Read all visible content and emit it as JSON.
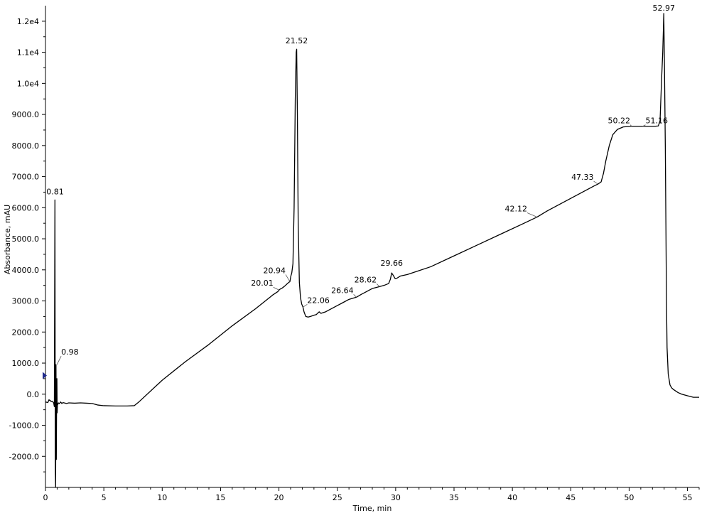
{
  "chart_data": {
    "type": "line",
    "title": "",
    "xlabel": "Time, min",
    "ylabel": "Absorbance, mAU",
    "xlim": [
      0,
      56
    ],
    "ylim": [
      -3000,
      12500
    ],
    "grid": false,
    "legend": "none",
    "line_color": "#000000",
    "marker_color": "#1f2a8c",
    "x_ticks": [
      {
        "value": 0,
        "label": "0"
      },
      {
        "value": 5,
        "label": "5"
      },
      {
        "value": 10,
        "label": "10"
      },
      {
        "value": 15,
        "label": "15"
      },
      {
        "value": 20,
        "label": "20"
      },
      {
        "value": 25,
        "label": "25"
      },
      {
        "value": 30,
        "label": "30"
      },
      {
        "value": 35,
        "label": "35"
      },
      {
        "value": 40,
        "label": "40"
      },
      {
        "value": 45,
        "label": "45"
      },
      {
        "value": 50,
        "label": "50"
      },
      {
        "value": 55,
        "label": "55"
      }
    ],
    "y_ticks": [
      {
        "value": -2000,
        "label": "-2000.0"
      },
      {
        "value": -1000,
        "label": "-1000.0"
      },
      {
        "value": 0,
        "label": "0.0"
      },
      {
        "value": 1000,
        "label": "1000.0"
      },
      {
        "value": 2000,
        "label": "2000.0"
      },
      {
        "value": 3000,
        "label": "3000.0"
      },
      {
        "value": 4000,
        "label": "4000.0"
      },
      {
        "value": 5000,
        "label": "5000.0"
      },
      {
        "value": 6000,
        "label": "6000.0"
      },
      {
        "value": 7000,
        "label": "7000.0"
      },
      {
        "value": 8000,
        "label": "8000.0"
      },
      {
        "value": 9000,
        "label": "9000.0"
      },
      {
        "value": 10000,
        "label": "1.0e4"
      },
      {
        "value": 11000,
        "label": "1.1e4"
      },
      {
        "value": 12000,
        "label": "1.2e4"
      }
    ],
    "series": [
      {
        "x": [
          0.0,
          0.1,
          0.2,
          0.3,
          0.4,
          0.5,
          0.6,
          0.7,
          0.76,
          0.81,
          0.84,
          0.87,
          0.9,
          0.93,
          0.96,
          0.98,
          1.0,
          1.03,
          1.06,
          1.1,
          1.2,
          1.3,
          1.4,
          1.5,
          1.6,
          1.8,
          2.0,
          2.5,
          3.0,
          3.5,
          4.0,
          4.5,
          5.0,
          6.0,
          7.0,
          7.6,
          8.0,
          10.0,
          12.0,
          14.0,
          16.0,
          18.0,
          19.0,
          19.5,
          19.9,
          20.01,
          20.1,
          20.3,
          20.5,
          20.7,
          20.85,
          20.94,
          21.02,
          21.1,
          21.2,
          21.3,
          21.4,
          21.48,
          21.52,
          21.58,
          21.65,
          21.75,
          21.85,
          21.95,
          22.06,
          22.15,
          22.3,
          22.5,
          22.7,
          23.0,
          23.2,
          23.3,
          23.45,
          23.6,
          24.0,
          24.5,
          25.0,
          25.5,
          26.0,
          26.64,
          27.0,
          27.5,
          28.0,
          28.3,
          28.62,
          29.0,
          29.4,
          29.55,
          29.66,
          29.8,
          29.95,
          30.1,
          30.4,
          31.0,
          33.0,
          35.0,
          37.0,
          39.0,
          41.0,
          42.12,
          43.0,
          45.0,
          46.5,
          47.0,
          47.33,
          47.6,
          47.8,
          48.0,
          48.3,
          48.6,
          49.0,
          49.5,
          50.22,
          50.8,
          51.16,
          51.6,
          52.2,
          52.5,
          52.65,
          52.72,
          52.8,
          52.88,
          52.94,
          52.97,
          53.03,
          53.1,
          53.15,
          53.2,
          53.25,
          53.35,
          53.5,
          53.65,
          53.8,
          54.0,
          54.2,
          54.5,
          55.0,
          55.5,
          56.0
        ],
        "y": [
          -250,
          -260,
          -270,
          -180,
          -200,
          -240,
          -230,
          -280,
          -400,
          6250,
          -2400,
          -3000,
          950,
          -2100,
          200,
          500,
          -600,
          -300,
          -330,
          -280,
          -300,
          -250,
          -300,
          -270,
          -280,
          -300,
          -280,
          -290,
          -280,
          -290,
          -300,
          -350,
          -370,
          -380,
          -380,
          -370,
          -250,
          450,
          1050,
          1600,
          2200,
          2750,
          3050,
          3200,
          3300,
          3350,
          3380,
          3420,
          3480,
          3550,
          3600,
          3620,
          3800,
          3900,
          4200,
          6000,
          9500,
          11000,
          11100,
          9000,
          5500,
          3600,
          3100,
          2900,
          2800,
          2650,
          2500,
          2480,
          2500,
          2540,
          2560,
          2600,
          2650,
          2600,
          2650,
          2750,
          2850,
          2950,
          3050,
          3120,
          3200,
          3300,
          3400,
          3430,
          3460,
          3500,
          3560,
          3700,
          3900,
          3820,
          3720,
          3730,
          3800,
          3850,
          4100,
          4450,
          4800,
          5150,
          5500,
          5700,
          5900,
          6300,
          6600,
          6700,
          6760,
          6830,
          7100,
          7500,
          8000,
          8350,
          8520,
          8600,
          8620,
          8620,
          8620,
          8620,
          8620,
          8630,
          8800,
          9500,
          10300,
          11000,
          11800,
          12250,
          10500,
          8000,
          5500,
          3000,
          1500,
          650,
          300,
          200,
          150,
          100,
          50,
          0,
          -50,
          -100,
          -100
        ]
      }
    ],
    "peak_labels": [
      {
        "label": "0.81",
        "x": 0.81,
        "y": 6250
      },
      {
        "label": "0.98",
        "x": 0.98,
        "y": 950
      },
      {
        "label": "20.01",
        "x": 20.01,
        "y": 3350
      },
      {
        "label": "20.94",
        "x": 20.94,
        "y": 3620
      },
      {
        "label": "21.52",
        "x": 21.52,
        "y": 11100
      },
      {
        "label": "22.06",
        "x": 22.06,
        "y": 2800
      },
      {
        "label": "26.64",
        "x": 26.64,
        "y": 3120
      },
      {
        "label": "28.62",
        "x": 28.62,
        "y": 3460
      },
      {
        "label": "29.66",
        "x": 29.66,
        "y": 3900
      },
      {
        "label": "42.12",
        "x": 42.12,
        "y": 5700
      },
      {
        "label": "47.33",
        "x": 47.33,
        "y": 6760
      },
      {
        "label": "50.22",
        "x": 50.22,
        "y": 8620
      },
      {
        "label": "51.16",
        "x": 51.16,
        "y": 8620
      },
      {
        "label": "52.97",
        "x": 52.97,
        "y": 12250
      }
    ],
    "marker": {
      "shape": "left-edge-triangle",
      "y": 600
    }
  }
}
